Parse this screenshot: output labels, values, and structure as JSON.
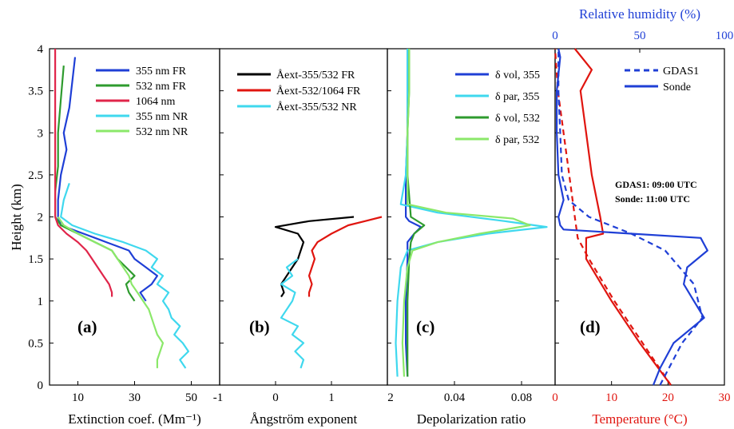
{
  "chart_data": [
    {
      "panel": "(a)",
      "type": "line",
      "xlabel": "Extinction coef. (Mm⁻¹)",
      "ylabel": "Height (km)",
      "xlim": [
        0,
        60
      ],
      "ylim": [
        0,
        4
      ],
      "xticks": [
        "10",
        "30",
        "50"
      ],
      "yticks": [
        "0",
        "0.5",
        "1",
        "1.5",
        "2",
        "2.5",
        "3",
        "3.5",
        "4"
      ],
      "legend_position": "top-right",
      "series": [
        {
          "name": "355 nm FR",
          "color": "#1f3fd6",
          "y": [
            1.0,
            1.1,
            1.2,
            1.3,
            1.4,
            1.5,
            1.6,
            1.7,
            1.8,
            1.9,
            2.0,
            2.2,
            2.5,
            2.8,
            3.0,
            3.3,
            3.6,
            3.9
          ],
          "x": [
            34,
            32,
            36,
            38,
            34,
            30,
            28,
            20,
            12,
            4,
            3,
            3,
            4,
            6,
            5,
            7,
            8,
            9
          ]
        },
        {
          "name": "532 nm FR",
          "color": "#2e9b2e",
          "y": [
            1.0,
            1.1,
            1.2,
            1.3,
            1.4,
            1.5,
            1.6,
            1.7,
            1.8,
            1.9,
            2.0,
            2.3,
            2.6,
            3.0,
            3.4,
            3.8
          ],
          "x": [
            30,
            28,
            27,
            30,
            27,
            24,
            22,
            16,
            10,
            4,
            2,
            2,
            3,
            3,
            4,
            5
          ]
        },
        {
          "name": "1064 nm",
          "color": "#e0254a",
          "y": [
            1.05,
            1.1,
            1.2,
            1.3,
            1.4,
            1.5,
            1.6,
            1.7,
            1.8,
            1.9,
            2.0,
            2.5,
            3.0,
            3.5,
            4.0
          ],
          "x": [
            22,
            22,
            21,
            19,
            17,
            15,
            13,
            10,
            6,
            3,
            2,
            2,
            2,
            2,
            2
          ]
        },
        {
          "name": "355 nm NR",
          "color": "#3fd8ee",
          "y": [
            0.2,
            0.3,
            0.4,
            0.5,
            0.6,
            0.7,
            0.8,
            0.9,
            1.0,
            1.1,
            1.2,
            1.3,
            1.4,
            1.5,
            1.6,
            1.7,
            1.8,
            1.9,
            2.0,
            2.2,
            2.4
          ],
          "x": [
            48,
            46,
            49,
            47,
            44,
            46,
            43,
            42,
            40,
            42,
            38,
            40,
            36,
            38,
            34,
            26,
            16,
            8,
            4,
            5,
            7
          ]
        },
        {
          "name": "532 nm NR",
          "color": "#8be86a",
          "y": [
            0.2,
            0.3,
            0.4,
            0.5,
            0.6,
            0.7,
            0.8,
            0.9,
            1.0,
            1.1,
            1.2,
            1.3,
            1.4,
            1.5,
            1.6,
            1.7,
            1.8,
            1.9,
            2.0
          ],
          "x": [
            38,
            38,
            39,
            40,
            38,
            37,
            36,
            35,
            33,
            31,
            29,
            28,
            26,
            24,
            22,
            16,
            10,
            5,
            3
          ]
        }
      ]
    },
    {
      "panel": "(b)",
      "type": "line",
      "xlabel": "Ångström exponent",
      "xlim": [
        -1,
        2
      ],
      "ylim": [
        0,
        4
      ],
      "xticks": [
        "-1",
        "0",
        "1",
        "2"
      ],
      "legend_position": "top-right",
      "legend_suffixes": [
        "FR",
        "FR",
        "NR"
      ],
      "series": [
        {
          "name": "Åext-355/532 FR",
          "color": "#000000",
          "y": [
            1.05,
            1.1,
            1.2,
            1.3,
            1.4,
            1.5,
            1.6,
            1.7,
            1.8,
            1.88,
            1.95,
            2.0
          ],
          "x": [
            0.1,
            0.15,
            0.1,
            0.2,
            0.3,
            0.4,
            0.45,
            0.5,
            0.4,
            0.0,
            0.6,
            1.4
          ]
        },
        {
          "name": "Åext-532/1064 FR",
          "color": "#e0150f",
          "y": [
            1.05,
            1.1,
            1.2,
            1.3,
            1.4,
            1.5,
            1.6,
            1.7,
            1.8,
            1.9,
            1.95,
            2.0
          ],
          "x": [
            0.6,
            0.6,
            0.65,
            0.6,
            0.65,
            0.7,
            0.65,
            0.75,
            1.0,
            1.3,
            1.6,
            1.9
          ]
        },
        {
          "name": "Åext-355/532 NR",
          "color": "#3fd8ee",
          "y": [
            0.2,
            0.3,
            0.4,
            0.5,
            0.6,
            0.7,
            0.8,
            0.9,
            1.0,
            1.1,
            1.2,
            1.3,
            1.4,
            1.5
          ],
          "x": [
            0.45,
            0.5,
            0.35,
            0.5,
            0.3,
            0.4,
            0.1,
            0.2,
            0.3,
            0.35,
            0.1,
            0.3,
            0.2,
            0.4
          ]
        }
      ]
    },
    {
      "panel": "(c)",
      "type": "line",
      "xlabel": "Depolarization ratio",
      "xlim": [
        0,
        0.1
      ],
      "ylim": [
        0,
        4
      ],
      "xticks": [
        "0.04",
        "0.08"
      ],
      "legend_position": "top-right",
      "series": [
        {
          "name": "δ vol, 355",
          "color": "#1f3fd6",
          "y": [
            0.1,
            0.5,
            1.0,
            1.5,
            1.7,
            1.8,
            1.88,
            1.95,
            2.0,
            2.5,
            3.0,
            3.5,
            4.0
          ],
          "x": [
            0.012,
            0.011,
            0.011,
            0.012,
            0.012,
            0.016,
            0.02,
            0.013,
            0.011,
            0.011,
            0.012,
            0.012,
            0.012
          ]
        },
        {
          "name": "δ par, 355",
          "color": "#3fd8ee",
          "y": [
            0.1,
            0.5,
            1.0,
            1.4,
            1.6,
            1.7,
            1.8,
            1.88,
            1.95,
            2.05,
            2.15,
            2.5,
            3.0,
            3.5,
            4.0
          ],
          "x": [
            0.006,
            0.005,
            0.006,
            0.008,
            0.012,
            0.03,
            0.06,
            0.095,
            0.07,
            0.03,
            0.008,
            0.011,
            0.012,
            0.012,
            0.012
          ]
        },
        {
          "name": "δ vol, 532",
          "color": "#2e9b2e",
          "y": [
            0.1,
            0.5,
            1.0,
            1.5,
            1.7,
            1.8,
            1.9,
            2.0,
            2.5,
            3.0,
            3.5,
            4.0
          ],
          "x": [
            0.012,
            0.012,
            0.012,
            0.013,
            0.014,
            0.016,
            0.022,
            0.014,
            0.012,
            0.012,
            0.013,
            0.013
          ]
        },
        {
          "name": "δ par, 532",
          "color": "#8be86a",
          "y": [
            0.1,
            0.5,
            1.0,
            1.4,
            1.6,
            1.7,
            1.8,
            1.9,
            1.98,
            2.05,
            2.15,
            2.5,
            3.0,
            3.5,
            4.0
          ],
          "x": [
            0.01,
            0.009,
            0.01,
            0.012,
            0.015,
            0.03,
            0.055,
            0.085,
            0.075,
            0.035,
            0.012,
            0.012,
            0.012,
            0.013,
            0.013
          ]
        }
      ]
    },
    {
      "panel": "(d)",
      "type": "line",
      "xlabel": "Temperature (°C)",
      "xlabel_top": "Relative humidity (%)",
      "xlim": [
        0,
        30
      ],
      "xlim_top": [
        0,
        100
      ],
      "ylim": [
        0,
        4
      ],
      "xticks": [
        "0",
        "10",
        "20",
        "30"
      ],
      "xticks_top": [
        "0",
        "50",
        "100"
      ],
      "legend_position": "top-right",
      "legend": [
        "GDAS1",
        "Sonde"
      ],
      "annotations": [
        "GDAS1: 09:00 UTC",
        "Sonde: 11:00 UTC"
      ],
      "series": [
        {
          "name": "Temperature GDAS1",
          "color": "#e0150f",
          "dash": true,
          "y": [
            0.0,
            0.5,
            1.0,
            1.5,
            1.75,
            2.0,
            2.5,
            3.0,
            3.5,
            4.0
          ],
          "x": [
            20.5,
            15.5,
            10.5,
            6.0,
            4.0,
            3.5,
            2.5,
            1.5,
            0.5,
            0.0
          ]
        },
        {
          "name": "Temperature Sonde",
          "color": "#e0150f",
          "y": [
            0.0,
            0.5,
            1.0,
            1.5,
            1.75,
            1.8,
            2.0,
            2.5,
            3.0,
            3.5,
            3.75,
            4.0
          ],
          "x": [
            20.5,
            15.0,
            10.0,
            5.5,
            5.5,
            8.5,
            8.0,
            6.5,
            5.5,
            4.5,
            6.5,
            3.5
          ]
        },
        {
          "name": "Relative humidity GDAS1",
          "color": "#1f3fd6",
          "dash": true,
          "y": [
            0.0,
            0.5,
            0.8,
            1.2,
            1.6,
            1.8,
            2.0,
            2.2,
            2.5,
            3.0,
            3.5,
            4.0
          ],
          "x": [
            62,
            75,
            87,
            82,
            65,
            45,
            20,
            8,
            4,
            3,
            2,
            2
          ]
        },
        {
          "name": "Relative humidity Sonde",
          "color": "#1f3fd6",
          "y": [
            0.0,
            0.2,
            0.5,
            0.8,
            1.0,
            1.2,
            1.4,
            1.6,
            1.75,
            1.8,
            1.85,
            1.9,
            2.0,
            2.2,
            2.5,
            3.0,
            3.5,
            3.9,
            4.0
          ],
          "x": [
            58,
            62,
            70,
            88,
            82,
            76,
            78,
            90,
            86,
            45,
            5,
            3,
            2,
            5,
            2,
            1,
            1,
            3,
            2
          ]
        }
      ]
    }
  ]
}
